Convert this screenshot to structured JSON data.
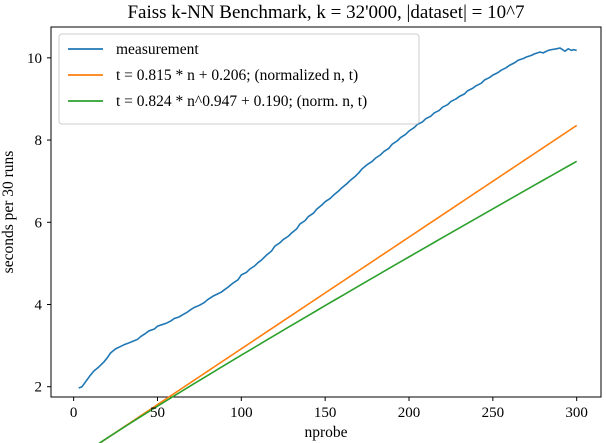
{
  "chart_data": {
    "type": "line",
    "title": "Faiss k-NN Benchmark, k = 32'000, |dataset| = 10^7",
    "xlabel": "nprobe",
    "ylabel": "seconds per 30 runs",
    "xlim": [
      -13.5,
      314.5
    ],
    "ylim": [
      1.75,
      10.75
    ],
    "xticks": [
      0,
      50,
      100,
      150,
      200,
      250,
      300
    ],
    "yticks": [
      2,
      4,
      6,
      8,
      10
    ],
    "grid": false,
    "legend_position": "top-left",
    "series": [
      {
        "name": "measurement",
        "color": "#1f77b4",
        "x": [
          3,
          5,
          8,
          10,
          12,
          15,
          18,
          20,
          22,
          25,
          28,
          30,
          32,
          35,
          38,
          40,
          43,
          45,
          48,
          50,
          52,
          55,
          58,
          60,
          63,
          65,
          68,
          70,
          72,
          75,
          78,
          80,
          83,
          85,
          88,
          90,
          92,
          95,
          98,
          100,
          103,
          105,
          108,
          110,
          112,
          115,
          118,
          120,
          123,
          125,
          128,
          130,
          133,
          135,
          138,
          140,
          143,
          145,
          148,
          150,
          153,
          155,
          158,
          160,
          163,
          165,
          168,
          170,
          172,
          175,
          178,
          180,
          183,
          185,
          188,
          190,
          193,
          195,
          198,
          200,
          203,
          205,
          208,
          210,
          213,
          215,
          218,
          220,
          223,
          225,
          228,
          230,
          233,
          235,
          238,
          240,
          243,
          245,
          248,
          250,
          253,
          255,
          258,
          260,
          263,
          265,
          268,
          270,
          273,
          275,
          278,
          280,
          283,
          285,
          288,
          290,
          293,
          295,
          297,
          298,
          300
        ],
        "y": [
          1.97,
          2.0,
          2.17,
          2.28,
          2.38,
          2.48,
          2.6,
          2.7,
          2.82,
          2.92,
          2.98,
          3.02,
          3.05,
          3.1,
          3.15,
          3.22,
          3.3,
          3.36,
          3.4,
          3.47,
          3.5,
          3.54,
          3.6,
          3.66,
          3.7,
          3.75,
          3.82,
          3.88,
          3.93,
          3.98,
          4.05,
          4.12,
          4.2,
          4.24,
          4.3,
          4.36,
          4.42,
          4.52,
          4.6,
          4.72,
          4.78,
          4.86,
          4.94,
          5.02,
          5.08,
          5.2,
          5.3,
          5.42,
          5.5,
          5.58,
          5.66,
          5.74,
          5.84,
          5.96,
          6.04,
          6.14,
          6.22,
          6.32,
          6.42,
          6.5,
          6.58,
          6.66,
          6.76,
          6.84,
          6.94,
          7.02,
          7.12,
          7.2,
          7.3,
          7.4,
          7.48,
          7.56,
          7.64,
          7.72,
          7.8,
          7.9,
          7.98,
          8.06,
          8.14,
          8.22,
          8.3,
          8.38,
          8.44,
          8.52,
          8.58,
          8.66,
          8.72,
          8.8,
          8.86,
          8.94,
          9.0,
          9.06,
          9.12,
          9.2,
          9.26,
          9.32,
          9.38,
          9.46,
          9.52,
          9.58,
          9.64,
          9.7,
          9.76,
          9.82,
          9.88,
          9.94,
          9.98,
          10.02,
          10.06,
          10.1,
          10.14,
          10.12,
          10.18,
          10.2,
          10.22,
          10.24,
          10.16,
          10.22,
          10.18,
          10.2,
          10.18
        ]
      },
      {
        "name": "t = 0.815 * n + 0.206; (normalized n, t)",
        "color": "#ff7f0e",
        "fit": {
          "kind": "linear",
          "a": 0.815,
          "b": 0.206
        },
        "x_range": [
          1,
          300
        ]
      },
      {
        "name": "t = 0.824 * n^0.947 + 0.190; (norm. n, t)",
        "color": "#2ca02c",
        "fit": {
          "kind": "power",
          "a": 0.824,
          "p": 0.947,
          "b": 0.19
        },
        "x_range": [
          2,
          300
        ]
      }
    ]
  }
}
